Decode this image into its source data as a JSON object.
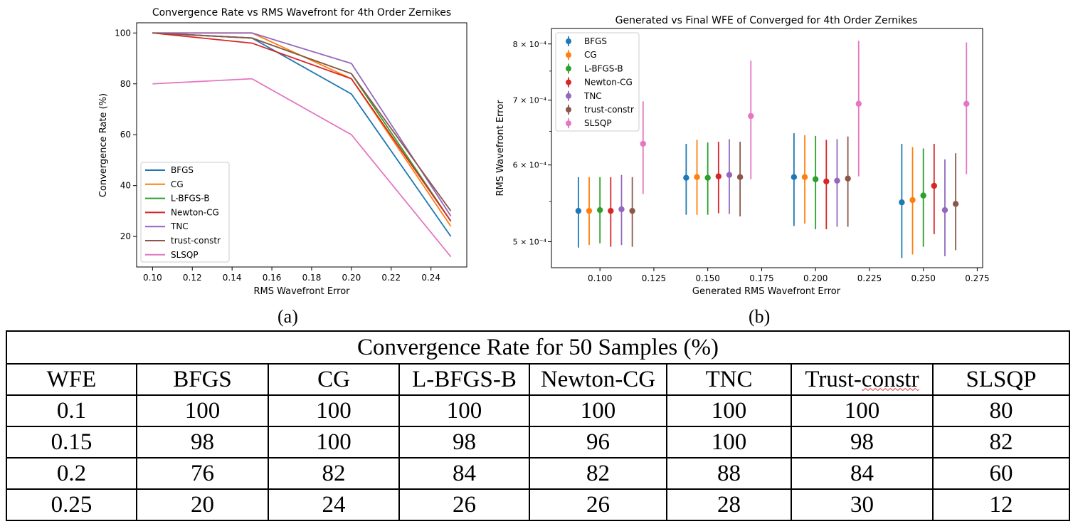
{
  "colors": {
    "BFGS": "#1f77b4",
    "CG": "#ff7f0e",
    "L-BFGS-B": "#2ca02c",
    "Newton-CG": "#d62728",
    "TNC": "#9467bd",
    "trust-constr": "#8c564b",
    "SLSQP": "#e377c2"
  },
  "chart_data": [
    {
      "type": "line",
      "title": "Convergence Rate vs RMS Wavefront for 4th Order Zernikes",
      "xlabel": "RMS Wavefront Error",
      "ylabel": "Convergence Rate (%)",
      "x": [
        0.1,
        0.15,
        0.2,
        0.25
      ],
      "xlim": [
        0.092,
        0.258
      ],
      "ylim": [
        8,
        104
      ],
      "xticks": [
        "0.10",
        "0.12",
        "0.14",
        "0.16",
        "0.18",
        "0.20",
        "0.22",
        "0.24"
      ],
      "yticks": [
        "20",
        "40",
        "60",
        "80",
        "100"
      ],
      "legend": "lower-left",
      "series": [
        {
          "name": "BFGS",
          "values": [
            100,
            98,
            76,
            20
          ]
        },
        {
          "name": "CG",
          "values": [
            100,
            100,
            82,
            24
          ]
        },
        {
          "name": "L-BFGS-B",
          "values": [
            100,
            98,
            84,
            26
          ]
        },
        {
          "name": "Newton-CG",
          "values": [
            100,
            96,
            82,
            26
          ]
        },
        {
          "name": "TNC",
          "values": [
            100,
            100,
            88,
            28
          ]
        },
        {
          "name": "trust-constr",
          "values": [
            100,
            98,
            84,
            30
          ]
        },
        {
          "name": "SLSQP",
          "values": [
            80,
            82,
            60,
            12
          ]
        }
      ],
      "caption": "(a)"
    },
    {
      "type": "scatter",
      "title": "Generated vs Final WFE of Converged for 4th Order Zernikes",
      "xlabel": "Generated RMS Wavefront Error",
      "ylabel": "RMS Wavefront Error",
      "yscale": "log",
      "xlim": [
        0.0775,
        0.2775
      ],
      "ylim": [
        0.00047,
        0.00083
      ],
      "xticks": [
        "0.100",
        "0.125",
        "0.150",
        "0.175",
        "0.200",
        "0.225",
        "0.250",
        "0.275"
      ],
      "yticks": [
        {
          "value": 0.0005,
          "label": "5 × 10⁻⁴"
        },
        {
          "value": 0.0006,
          "label": "6 × 10⁻⁴"
        },
        {
          "value": 0.0007,
          "label": "7 × 10⁻⁴"
        },
        {
          "value": 0.0008,
          "label": "8 × 10⁻⁴"
        }
      ],
      "legend": "top-left",
      "series": [
        {
          "name": "BFGS",
          "points": [
            {
              "x": 0.09,
              "y": 0.000538,
              "lo": 0.000493,
              "hi": 0.000583
            },
            {
              "x": 0.14,
              "y": 0.000582,
              "lo": 0.000533,
              "hi": 0.000631
            },
            {
              "x": 0.19,
              "y": 0.000583,
              "lo": 0.000519,
              "hi": 0.000647
            },
            {
              "x": 0.24,
              "y": 0.000549,
              "lo": 0.000481,
              "hi": 0.000631
            }
          ]
        },
        {
          "name": "CG",
          "points": [
            {
              "x": 0.095,
              "y": 0.000538,
              "lo": 0.000496,
              "hi": 0.000583
            },
            {
              "x": 0.145,
              "y": 0.000583,
              "lo": 0.000533,
              "hi": 0.000637
            },
            {
              "x": 0.195,
              "y": 0.000583,
              "lo": 0.000522,
              "hi": 0.000644
            },
            {
              "x": 0.245,
              "y": 0.000552,
              "lo": 0.000485,
              "hi": 0.000626
            }
          ]
        },
        {
          "name": "L-BFGS-B",
          "points": [
            {
              "x": 0.1,
              "y": 0.000539,
              "lo": 0.000498,
              "hi": 0.000583
            },
            {
              "x": 0.15,
              "y": 0.000582,
              "lo": 0.000533,
              "hi": 0.000633
            },
            {
              "x": 0.2,
              "y": 0.00058,
              "lo": 0.000515,
              "hi": 0.000643
            },
            {
              "x": 0.25,
              "y": 0.000558,
              "lo": 0.000494,
              "hi": 0.000624
            }
          ]
        },
        {
          "name": "Newton-CG",
          "points": [
            {
              "x": 0.105,
              "y": 0.000538,
              "lo": 0.000494,
              "hi": 0.000583
            },
            {
              "x": 0.155,
              "y": 0.000584,
              "lo": 0.000535,
              "hi": 0.000634
            },
            {
              "x": 0.205,
              "y": 0.000577,
              "lo": 0.000515,
              "hi": 0.000637
            },
            {
              "x": 0.255,
              "y": 0.000571,
              "lo": 0.000509,
              "hi": 0.000631
            }
          ]
        },
        {
          "name": "TNC",
          "points": [
            {
              "x": 0.11,
              "y": 0.00054,
              "lo": 0.000496,
              "hi": 0.000586
            },
            {
              "x": 0.16,
              "y": 0.000586,
              "lo": 0.000534,
              "hi": 0.000638
            },
            {
              "x": 0.21,
              "y": 0.000578,
              "lo": 0.000518,
              "hi": 0.000638
            },
            {
              "x": 0.26,
              "y": 0.000539,
              "lo": 0.000483,
              "hi": 0.000608
            }
          ]
        },
        {
          "name": "trust-constr",
          "points": [
            {
              "x": 0.115,
              "y": 0.000538,
              "lo": 0.000494,
              "hi": 0.000583
            },
            {
              "x": 0.165,
              "y": 0.000583,
              "lo": 0.000531,
              "hi": 0.000634
            },
            {
              "x": 0.215,
              "y": 0.000581,
              "lo": 0.000518,
              "hi": 0.000642
            },
            {
              "x": 0.265,
              "y": 0.000547,
              "lo": 0.00049,
              "hi": 0.000617
            }
          ]
        },
        {
          "name": "SLSQP",
          "points": [
            {
              "x": 0.12,
              "y": 0.000631,
              "lo": 0.00056,
              "hi": 0.000698
            },
            {
              "x": 0.17,
              "y": 0.000674,
              "lo": 0.00058,
              "hi": 0.000769
            },
            {
              "x": 0.22,
              "y": 0.000694,
              "lo": 0.000584,
              "hi": 0.000806
            },
            {
              "x": 0.27,
              "y": 0.000694,
              "lo": 0.000587,
              "hi": 0.000803
            }
          ]
        }
      ],
      "caption": "(b)"
    },
    {
      "type": "table",
      "title": "Convergence Rate for 50 Samples (%)",
      "columns": [
        "WFE",
        "BFGS",
        "CG",
        "L-BFGS-B",
        "Newton-CG",
        "TNC",
        "Trust-constr",
        "SLSQP"
      ],
      "rows": [
        [
          "0.1",
          "100",
          "100",
          "100",
          "100",
          "100",
          "100",
          "80"
        ],
        [
          "0.15",
          "98",
          "100",
          "98",
          "96",
          "100",
          "98",
          "82"
        ],
        [
          "0.2",
          "76",
          "82",
          "84",
          "82",
          "88",
          "84",
          "60"
        ],
        [
          "0.25",
          "20",
          "24",
          "26",
          "26",
          "28",
          "30",
          "12"
        ]
      ]
    }
  ]
}
